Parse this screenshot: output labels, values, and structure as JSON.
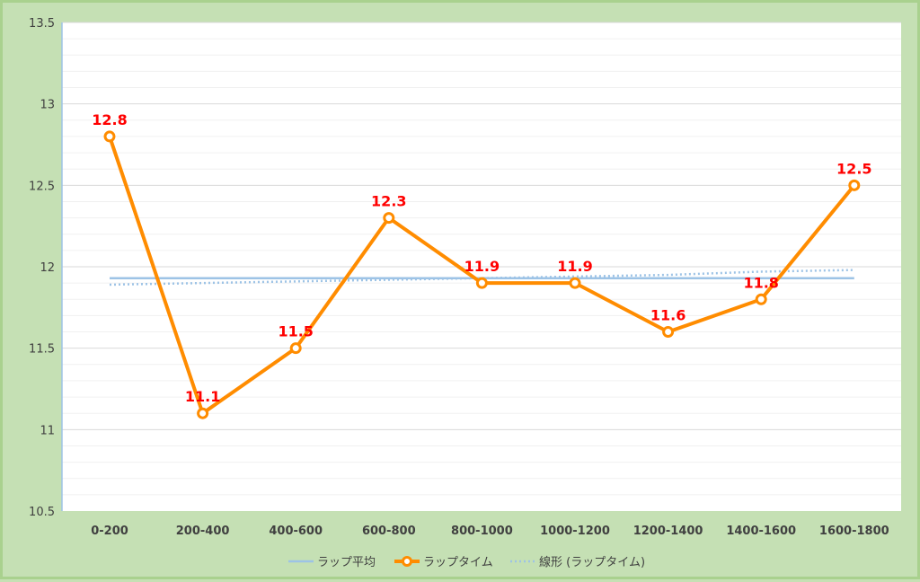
{
  "chart_data": {
    "type": "line",
    "categories": [
      "0-200",
      "200-400",
      "400-600",
      "600-800",
      "800-1000",
      "1000-1200",
      "1200-1400",
      "1400-1600",
      "1600-1800"
    ],
    "series": [
      {
        "name": "ラップ平均",
        "values": [
          11.93,
          11.93,
          11.93,
          11.93,
          11.93,
          11.93,
          11.93,
          11.93,
          11.93
        ],
        "color": "#9dc3e6",
        "style": "solid"
      },
      {
        "name": "ラップタイム",
        "values": [
          12.8,
          11.1,
          11.5,
          12.3,
          11.9,
          11.9,
          11.6,
          11.8,
          12.5
        ],
        "color": "#ff8c00",
        "style": "solid-markers",
        "data_labels": true
      },
      {
        "name": "線形 (ラップタイム)",
        "values": [
          11.89,
          11.9,
          11.91,
          11.92,
          11.93,
          11.94,
          11.95,
          11.97,
          11.98
        ],
        "color": "#9dc3e6",
        "style": "dotted"
      }
    ],
    "ylim": [
      10.5,
      13.5
    ],
    "yticks": [
      10.5,
      11,
      11.5,
      12,
      12.5,
      13,
      13.5
    ],
    "ytick_labels": [
      "10.5",
      "11",
      "11.5",
      "12",
      "12.5",
      "13",
      "13.5"
    ],
    "grid": true,
    "legend_position": "bottom",
    "label_color": "#ff0000",
    "title": "",
    "xlabel": "",
    "ylabel": ""
  }
}
